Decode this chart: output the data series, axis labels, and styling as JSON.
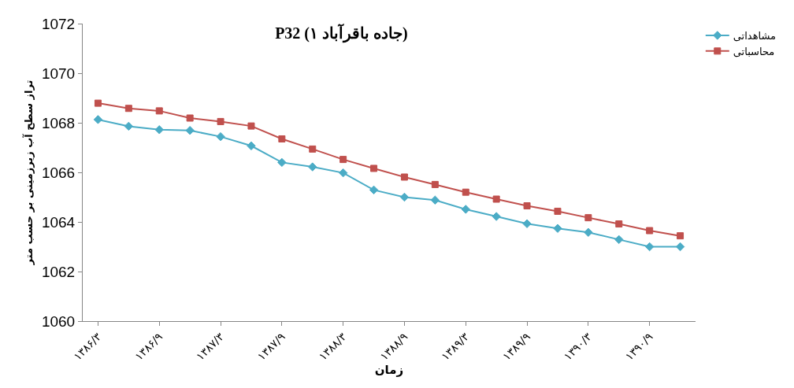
{
  "chart_data": {
    "type": "line",
    "title": "P32 (جاده باقرآباد ۱)",
    "xlabel": "زمان",
    "ylabel": "تراز سطح آب زیرزمینی بر حسب متر",
    "categories": [
      "۱۳۸۶/۳",
      null,
      "۱۳۸۶/۹",
      null,
      "۱۳۸۷/۳",
      null,
      "۱۳۸۷/۹",
      null,
      "۱۳۸۸/۳",
      null,
      "۱۳۸۸/۹",
      null,
      "۱۳۸۹/۳",
      null,
      "۱۳۸۹/۹",
      null,
      "۱۳۹۰/۳",
      null,
      "۱۳۹۰/۹",
      null
    ],
    "series": [
      {
        "name": "مشاهداتی",
        "color": "#4bacc6",
        "marker": "diamond",
        "values": [
          1068.13,
          1067.86,
          1067.72,
          1067.69,
          1067.44,
          1067.07,
          1066.4,
          1066.22,
          1065.98,
          1065.29,
          1065.0,
          1064.88,
          1064.51,
          1064.22,
          1063.93,
          1063.74,
          1063.58,
          1063.29,
          1063.0,
          1063.0
        ]
      },
      {
        "name": "محاسباتی",
        "color": "#c0504d",
        "marker": "square",
        "values": [
          1068.79,
          1068.58,
          1068.48,
          1068.19,
          1068.05,
          1067.87,
          1067.35,
          1066.94,
          1066.52,
          1066.16,
          1065.81,
          1065.51,
          1065.2,
          1064.92,
          1064.65,
          1064.43,
          1064.17,
          1063.92,
          1063.65,
          1063.44
        ]
      }
    ],
    "ylim": [
      1060,
      1072
    ],
    "yticks": [
      1060,
      1062,
      1064,
      1066,
      1068,
      1070,
      1072
    ],
    "grid": false,
    "legend": "top right",
    "line_style": "solid"
  }
}
